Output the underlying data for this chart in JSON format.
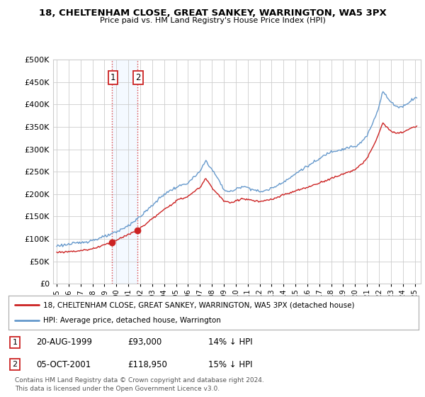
{
  "title": "18, CHELTENHAM CLOSE, GREAT SANKEY, WARRINGTON, WA5 3PX",
  "subtitle": "Price paid vs. HM Land Registry's House Price Index (HPI)",
  "legend_line1": "18, CHELTENHAM CLOSE, GREAT SANKEY, WARRINGTON, WA5 3PX (detached house)",
  "legend_line2": "HPI: Average price, detached house, Warrington",
  "footer": "Contains HM Land Registry data © Crown copyright and database right 2024.\nThis data is licensed under the Open Government Licence v3.0.",
  "sale1_label": "1",
  "sale1_date": "20-AUG-1999",
  "sale1_price": "£93,000",
  "sale1_hpi": "14% ↓ HPI",
  "sale2_label": "2",
  "sale2_date": "05-OCT-2001",
  "sale2_price": "£118,950",
  "sale2_hpi": "15% ↓ HPI",
  "sale1_x": 1999.62,
  "sale1_y": 93000,
  "sale2_x": 2001.75,
  "sale2_y": 118950,
  "hpi_color": "#6699cc",
  "price_color": "#cc2222",
  "sale_dot_color": "#cc2222",
  "highlight_color": "#ddeeff",
  "ylim": [
    0,
    500000
  ],
  "yticks": [
    0,
    50000,
    100000,
    150000,
    200000,
    250000,
    300000,
    350000,
    400000,
    450000,
    500000
  ],
  "xmin": 1994.7,
  "xmax": 2025.5,
  "background_color": "#ffffff",
  "grid_color": "#cccccc",
  "hpi_anchors_x": [
    1995.0,
    1996.0,
    1997.0,
    1998.0,
    1999.0,
    2000.0,
    2001.0,
    2002.0,
    2003.0,
    2004.0,
    2005.0,
    2006.0,
    2007.0,
    2007.5,
    2008.0,
    2008.5,
    2009.0,
    2009.5,
    2010.0,
    2010.5,
    2011.0,
    2011.5,
    2012.0,
    2012.5,
    2013.0,
    2013.5,
    2014.0,
    2014.5,
    2015.0,
    2015.5,
    2016.0,
    2016.5,
    2017.0,
    2017.5,
    2018.0,
    2018.5,
    2019.0,
    2019.5,
    2020.0,
    2020.5,
    2021.0,
    2021.5,
    2022.0,
    2022.3,
    2022.7,
    2023.0,
    2023.5,
    2024.0,
    2024.5,
    2025.0
  ],
  "hpi_anchors_y": [
    85000,
    88000,
    92000,
    97000,
    105000,
    115000,
    130000,
    150000,
    175000,
    200000,
    215000,
    225000,
    250000,
    275000,
    255000,
    235000,
    210000,
    205000,
    210000,
    218000,
    215000,
    210000,
    205000,
    208000,
    213000,
    220000,
    228000,
    235000,
    245000,
    255000,
    262000,
    270000,
    278000,
    288000,
    295000,
    298000,
    300000,
    305000,
    305000,
    315000,
    330000,
    360000,
    395000,
    430000,
    415000,
    405000,
    395000,
    395000,
    405000,
    415000
  ],
  "price_anchors_x": [
    1995.0,
    1996.0,
    1997.0,
    1998.0,
    1999.62,
    2001.75,
    2003.0,
    2004.0,
    2005.0,
    2006.0,
    2007.0,
    2007.5,
    2008.0,
    2008.5,
    2009.0,
    2009.5,
    2010.0,
    2010.5,
    2011.0,
    2012.0,
    2013.0,
    2014.0,
    2015.0,
    2016.0,
    2017.0,
    2018.0,
    2019.0,
    2019.5,
    2020.0,
    2020.5,
    2021.0,
    2021.5,
    2022.0,
    2022.3,
    2022.7,
    2023.0,
    2023.5,
    2024.0,
    2024.5,
    2025.0
  ],
  "price_anchors_y": [
    70000,
    72000,
    74000,
    78000,
    93000,
    118950,
    145000,
    165000,
    185000,
    195000,
    215000,
    235000,
    215000,
    200000,
    185000,
    180000,
    185000,
    190000,
    188000,
    183000,
    188000,
    198000,
    207000,
    215000,
    225000,
    235000,
    245000,
    250000,
    255000,
    265000,
    280000,
    305000,
    335000,
    360000,
    348000,
    340000,
    335000,
    338000,
    345000,
    350000
  ]
}
